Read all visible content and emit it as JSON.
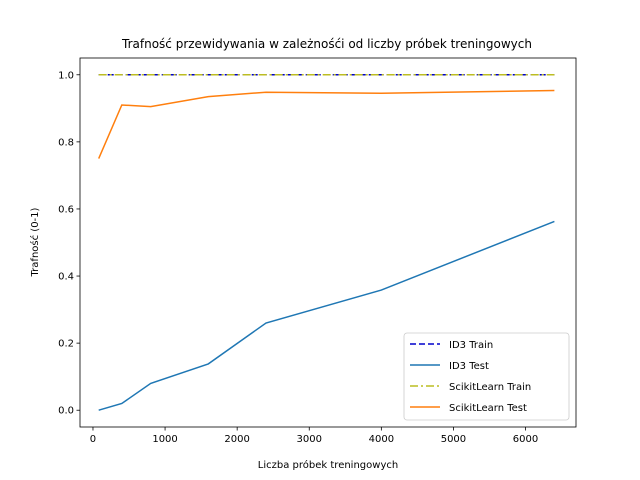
{
  "chart_data": {
    "type": "line",
    "title": "Trafność przewidywania w zależnośći od liczby próbek treningowych",
    "xlabel": "Liczba próbek treningowych",
    "ylabel": "Trafność (0-1)",
    "xlim": [
      -180,
      6700
    ],
    "ylim": [
      -0.05,
      1.05
    ],
    "xticks": [
      0,
      1000,
      2000,
      3000,
      4000,
      5000,
      6000
    ],
    "yticks": [
      0.0,
      0.2,
      0.4,
      0.6,
      0.8,
      1.0
    ],
    "xtick_labels": [
      "0",
      "1000",
      "2000",
      "3000",
      "4000",
      "5000",
      "6000"
    ],
    "ytick_labels": [
      "0.0",
      "0.2",
      "0.4",
      "0.6",
      "0.8",
      "1.0"
    ],
    "grid": false,
    "legend_position": "lower-right",
    "x": [
      80,
      400,
      800,
      1600,
      2400,
      4000,
      6400
    ],
    "series": [
      {
        "name": "ID3 Train",
        "color": "#0000cc",
        "dash": "dashed",
        "values": [
          1.0,
          1.0,
          1.0,
          1.0,
          1.0,
          1.0,
          1.0
        ]
      },
      {
        "name": "ID3 Test",
        "color": "#1f77b4",
        "dash": "solid",
        "values": [
          0.0,
          0.02,
          0.08,
          0.138,
          0.26,
          0.358,
          0.563
        ]
      },
      {
        "name": "ScikitLearn Train",
        "color": "#bcbd22",
        "dash": "dashdot",
        "values": [
          1.0,
          1.0,
          1.0,
          1.0,
          1.0,
          1.0,
          1.0
        ]
      },
      {
        "name": "ScikitLearn Test",
        "color": "#ff7f0e",
        "dash": "solid",
        "values": [
          0.75,
          0.91,
          0.905,
          0.935,
          0.948,
          0.945,
          0.953
        ]
      }
    ]
  }
}
